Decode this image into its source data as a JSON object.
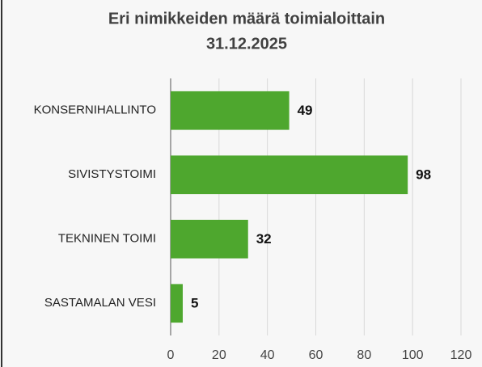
{
  "chart_data": {
    "type": "barh",
    "title": "Eri nimikkeiden määrä toimialoittain",
    "subtitle": "31.12.2025",
    "categories": [
      "KONSERNIHALLINTO",
      "SIVISTYSTOIMI",
      "TEKNINEN TOIMI",
      "SASTAMALAN VESI"
    ],
    "values": [
      49,
      98,
      32,
      5
    ],
    "color": "#4ea72e",
    "xlim": [
      0,
      120
    ],
    "xticks": [
      0,
      20,
      40,
      60,
      80,
      100,
      120
    ],
    "grid": true
  }
}
